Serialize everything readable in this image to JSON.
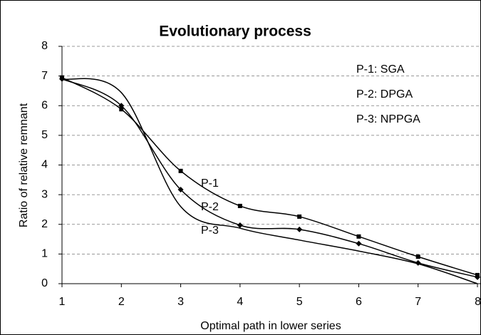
{
  "chart_data": {
    "type": "line",
    "title": "Evolutionary process",
    "x_label": "Optimal path in lower series",
    "y_label": "Ratio of relative remnant",
    "x": [
      1,
      2,
      3,
      4,
      5,
      6,
      7,
      8
    ],
    "series": [
      {
        "name": "P-1",
        "color": "#000000",
        "marker": "square",
        "values": [
          6.95,
          5.88,
          3.8,
          2.62,
          2.26,
          1.59,
          0.91,
          0.29
        ]
      },
      {
        "name": "P-2",
        "color": "#000000",
        "marker": "diamond",
        "values": [
          6.9,
          6.0,
          3.17,
          1.97,
          1.83,
          1.35,
          0.7,
          0.22
        ]
      },
      {
        "name": "P-3",
        "color": "#000000",
        "marker": "none",
        "values": [
          6.9,
          6.44,
          2.6,
          1.87,
          1.47,
          1.1,
          0.67,
          0.0
        ]
      }
    ],
    "annotations": [
      "P-1: SGA",
      "P-2: DPGA",
      "P-3: NPPGA"
    ],
    "xlim": [
      1,
      8
    ],
    "xticks": [
      1,
      2,
      3,
      4,
      5,
      6,
      7,
      8
    ],
    "ylim": [
      0,
      8
    ],
    "yticks": [
      0,
      1,
      2,
      3,
      4,
      5,
      6,
      7,
      8
    ],
    "grid": true,
    "smooth": true
  }
}
